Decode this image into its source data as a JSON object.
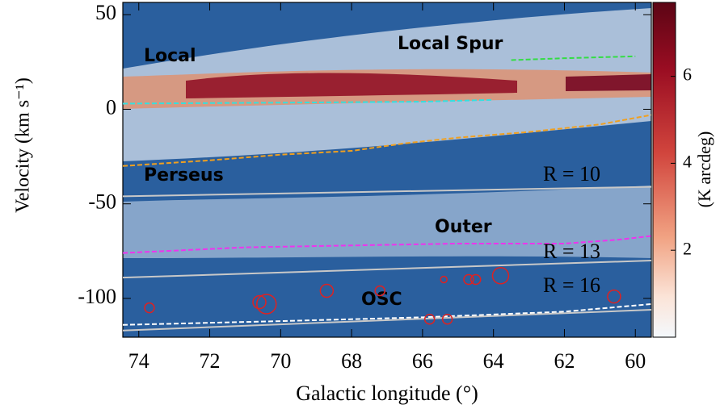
{
  "chart_data": {
    "type": "lv-diagram",
    "x_label": "Galactic longitude (°)",
    "y_label": "Velocity (km s⁻¹)",
    "colorbar_label": "(K arcdeg)",
    "xlim": [
      74.45,
      59.55
    ],
    "ylim": [
      -120.5,
      56.5
    ],
    "xticks": [
      74,
      72,
      70,
      68,
      66,
      64,
      62,
      60
    ],
    "yticks": [
      50,
      0,
      -50,
      -100
    ],
    "clim": [
      0,
      7.7
    ],
    "cticks": [
      2,
      4,
      6
    ],
    "series": [
      {
        "name": "Local",
        "color": "#33e0e0",
        "dashed": true,
        "x": [
          74.45,
          70,
          66,
          64
        ],
        "values": [
          3,
          3.5,
          4,
          5
        ]
      },
      {
        "name": "Local Spur",
        "color": "#33dd44",
        "dashed": true,
        "x": [
          63.5,
          62,
          60
        ],
        "values": [
          26,
          27,
          28
        ]
      },
      {
        "name": "Perseus",
        "color": "#f0a020",
        "dashed": true,
        "x": [
          74.45,
          72,
          70,
          68,
          66.5,
          65,
          63,
          61,
          59.55
        ],
        "values": [
          -30,
          -27,
          -24,
          -22,
          -18,
          -15,
          -12,
          -8,
          -3
        ]
      },
      {
        "name": "Outer",
        "color": "#ee33ee",
        "dashed": true,
        "x": [
          74.45,
          71,
          68,
          65,
          62,
          60.5,
          59.55
        ],
        "values": [
          -76,
          -73,
          -72,
          -71,
          -71,
          -69,
          -67
        ]
      },
      {
        "name": "OSC",
        "color": "#ffffff",
        "dashed": true,
        "x": [
          74.45,
          70,
          66,
          62,
          59.55
        ],
        "values": [
          -114,
          -112,
          -110,
          -107,
          -103
        ]
      },
      {
        "name": "R = 10",
        "color": "#c8c8c8",
        "dashed": false,
        "x": [
          74.45,
          59.55
        ],
        "values": [
          -46,
          -41
        ]
      },
      {
        "name": "R = 13",
        "color": "#c8c8c8",
        "dashed": false,
        "x": [
          74.45,
          59.55
        ],
        "values": [
          -89,
          -80
        ]
      },
      {
        "name": "R = 16",
        "color": "#c8c8c8",
        "dashed": false,
        "x": [
          74.45,
          59.55
        ],
        "values": [
          -117,
          -106
        ]
      }
    ],
    "sources": {
      "color": "#dd2222",
      "x": [
        73.7,
        70.6,
        70.4,
        68.7,
        67.2,
        65.8,
        65.3,
        65.4,
        64.7,
        64.5,
        63.8,
        60.6
      ],
      "values": [
        -105,
        -102,
        -103,
        -96,
        -96,
        -111,
        -111,
        -90,
        -90,
        -90,
        -88,
        -99
      ],
      "sizes": [
        2,
        3,
        5,
        3,
        2,
        2,
        2,
        1,
        2,
        2,
        4,
        3
      ]
    }
  }
}
